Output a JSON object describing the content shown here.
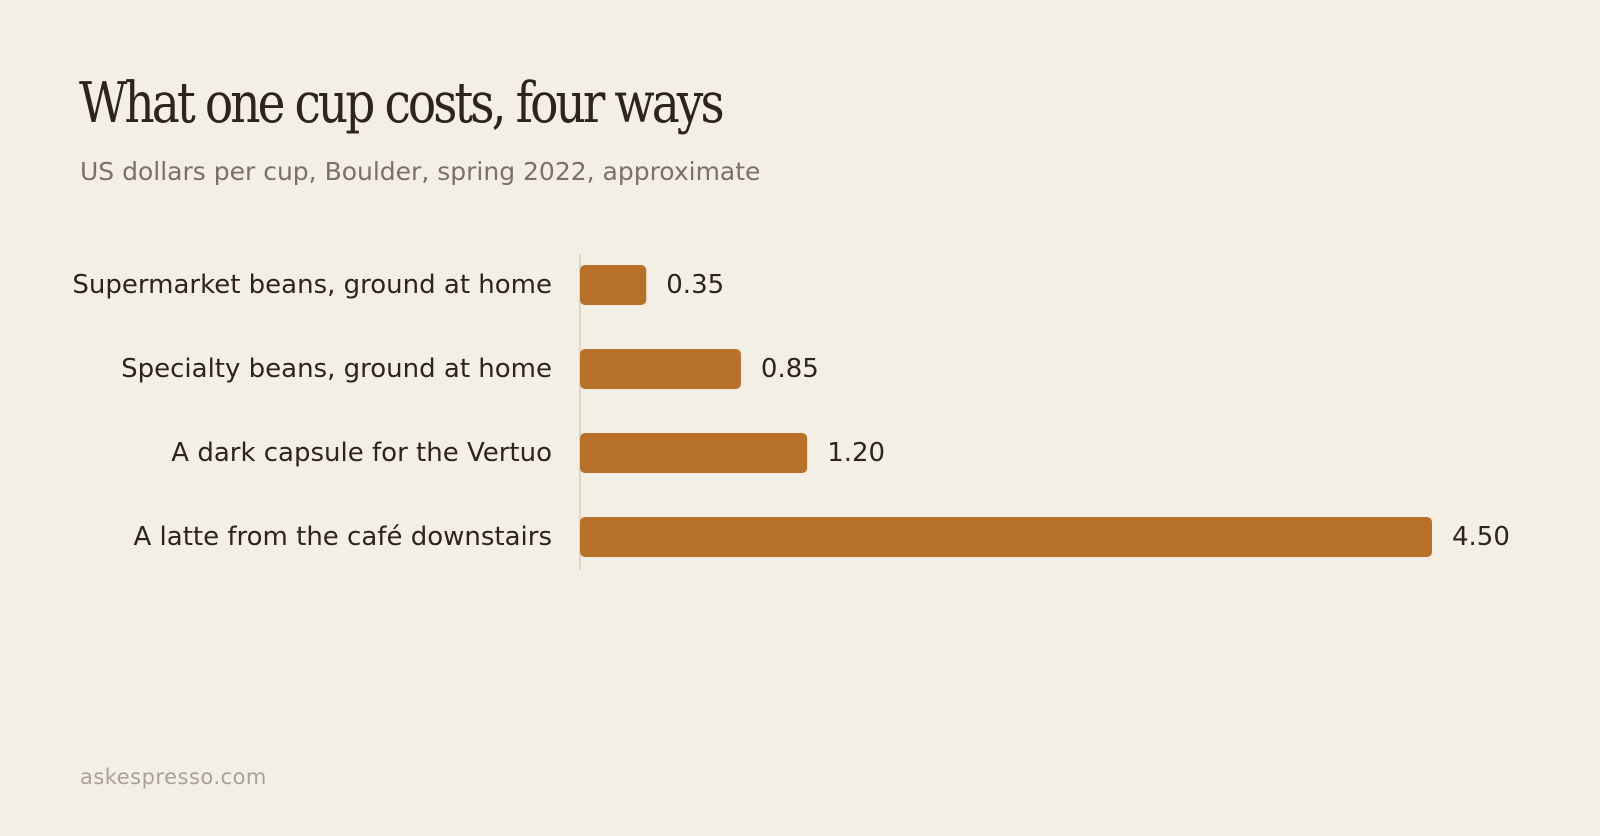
{
  "chart_data": {
    "type": "bar",
    "orientation": "horizontal",
    "title": "What one cup costs, four ways",
    "subtitle": "US dollars per cup, Boulder, spring 2022, approximate",
    "categories": [
      "Supermarket beans, ground at home",
      "Specialty beans, ground at home",
      "A dark capsule for the Vertuo",
      "A latte from the café downstairs"
    ],
    "values": [
      0.35,
      0.85,
      1.2,
      4.5
    ],
    "value_labels": [
      "0.35",
      "0.85",
      "1.20",
      "4.50"
    ],
    "xlabel": "",
    "ylabel": "",
    "xlim": [
      0,
      4.5
    ],
    "grid": false,
    "legend": "none",
    "bar_color": "#b8712b",
    "axis_color": "#ddd5c6"
  },
  "footer": {
    "source": "askespresso.com"
  }
}
